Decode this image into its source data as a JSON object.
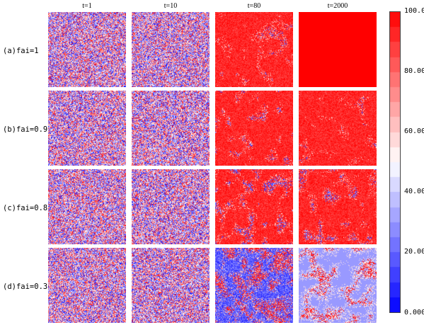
{
  "columns": [
    "t=1",
    "t=10",
    "t=80",
    "t=2000"
  ],
  "rows": [
    {
      "label": "(a)fai=1",
      "red_fraction": [
        0.5,
        0.5,
        0.8,
        1.0
      ]
    },
    {
      "label": "(b)fai=0.9",
      "red_fraction": [
        0.5,
        0.5,
        0.75,
        0.82
      ]
    },
    {
      "label": "(c)fai=0.8",
      "red_fraction": [
        0.5,
        0.5,
        0.68,
        0.72
      ]
    },
    {
      "label": "(d)fai=0.3",
      "red_fraction": [
        0.5,
        0.5,
        0.35,
        0.35
      ]
    }
  ],
  "colorbar": {
    "ticks": [
      "100.0",
      "80.00",
      "60.00",
      "40.00",
      "20.00",
      "0.000"
    ],
    "min": 0,
    "max": 100,
    "colors": {
      "low": "#0000ff",
      "mid": "#ffffff",
      "high": "#ff0000"
    }
  }
}
